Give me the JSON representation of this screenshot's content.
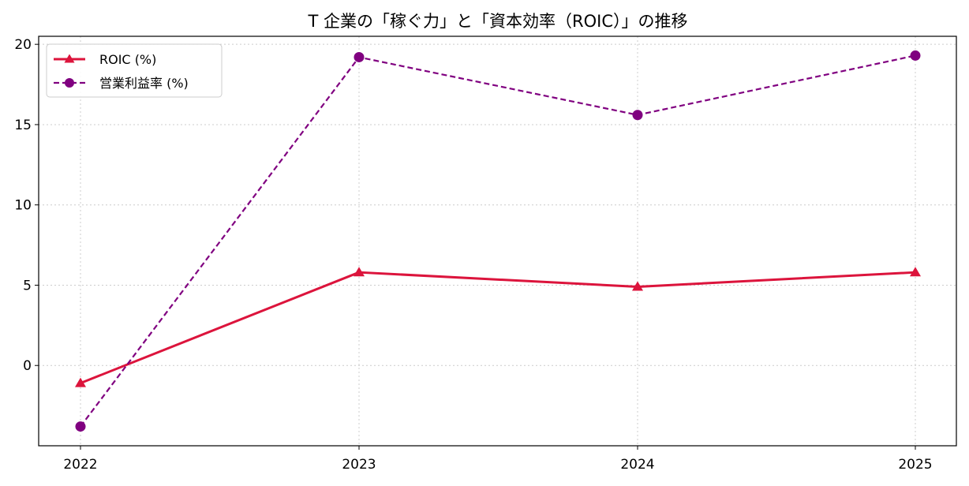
{
  "chart_data": {
    "type": "line",
    "title": "T 企業の「稼ぐ力」と「資本効率（ROIC）」の推移",
    "xlabel": "",
    "ylabel": "",
    "categories": [
      "2022",
      "2023",
      "2024",
      "2025"
    ],
    "ylim": [
      -5,
      20.5
    ],
    "yticks": [
      0,
      5,
      10,
      15,
      20
    ],
    "grid": true,
    "legend_position": "top-left",
    "series": [
      {
        "name": "ROIC (%)",
        "values": [
          -1.1,
          5.8,
          4.9,
          5.8
        ],
        "color": "#dc143c",
        "style": "solid",
        "marker": "triangle"
      },
      {
        "name": "営業利益率 (%)",
        "values": [
          -3.8,
          19.2,
          15.6,
          19.3
        ],
        "color": "#800080",
        "style": "dashed",
        "marker": "circle"
      }
    ]
  }
}
